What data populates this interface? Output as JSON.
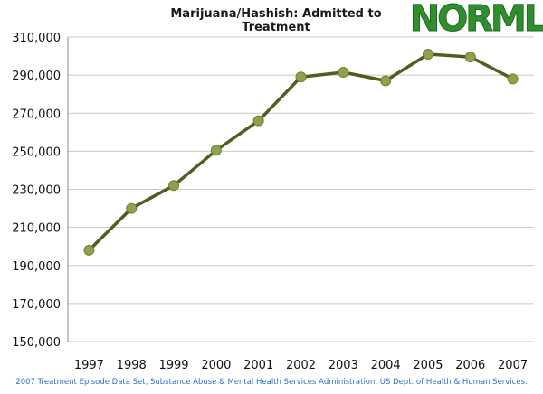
{
  "chart_data": {
    "type": "line",
    "title": "Marijuana/Hashish: Admitted to Treatment",
    "x": [
      "1997",
      "1998",
      "1999",
      "2000",
      "2001",
      "2002",
      "2003",
      "2004",
      "2005",
      "2006",
      "2007"
    ],
    "series": [
      {
        "values": [
          198000,
          220000,
          232000,
          250500,
          266000,
          289000,
          291500,
          287000,
          301000,
          299500,
          288000
        ]
      }
    ],
    "ylim": [
      150000,
      310000
    ],
    "yticks": [
      150000,
      170000,
      190000,
      210000,
      230000,
      250000,
      270000,
      290000,
      310000
    ],
    "ytick_labels": [
      "150,000",
      "170,000",
      "190,000",
      "210,000",
      "230,000",
      "250,000",
      "270,000",
      "290,000",
      "310,000"
    ],
    "grid": "horizontal",
    "legend": "none",
    "colors": {
      "line": "#4e5f1f",
      "marker": "#8fa14a",
      "grid": "#c8c8c8"
    }
  },
  "logo": {
    "text": "NORML",
    "color": "#2f8f2f"
  },
  "source_note": "2007 Treatment Episode Data Set, Substance Abuse & Mental Health Services Administration, US Dept. of Health & Human Services."
}
